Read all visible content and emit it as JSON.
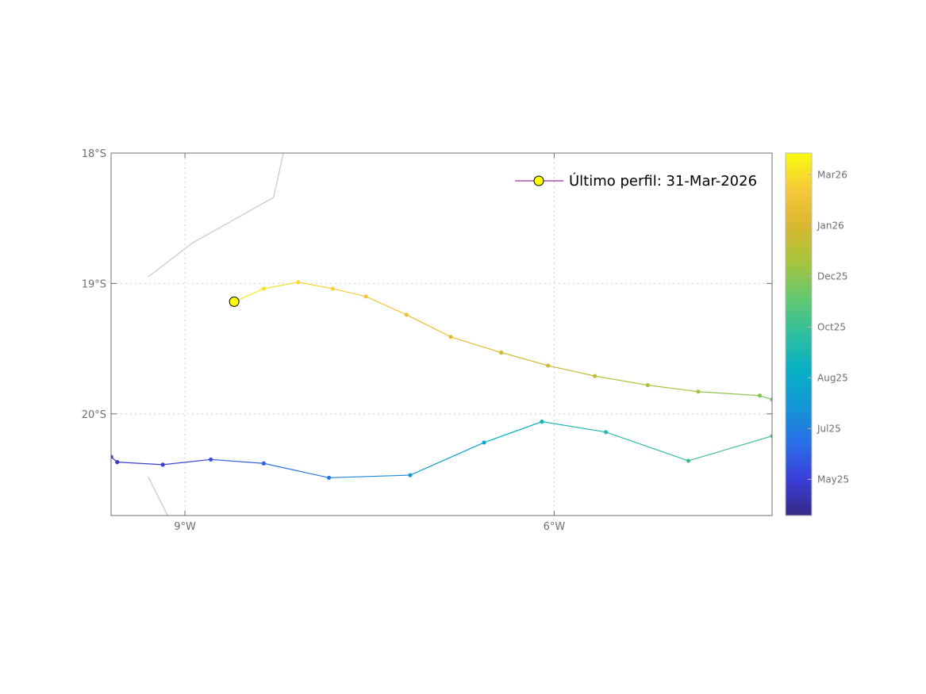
{
  "chart_data": {
    "type": "scatter",
    "description_type": "float-trajectory-map",
    "x_ticks": [
      {
        "value": -9,
        "label": "9°W"
      },
      {
        "value": -6,
        "label": "6°W"
      }
    ],
    "y_ticks": [
      {
        "value": -18,
        "label": "18°S"
      },
      {
        "value": -19,
        "label": "19°S"
      },
      {
        "value": -20,
        "label": "20°S"
      }
    ],
    "xlim": [
      -9.6,
      -4.23
    ],
    "ylim": [
      -20.78,
      -18.0
    ],
    "grid": true,
    "legend": {
      "position": "top-right",
      "label": "Último perfil: 31-Mar-2026",
      "marker_color": "#ffff00",
      "line_color": "#800080"
    },
    "colorbar": {
      "labels": [
        "Mar26",
        "Jan26",
        "Dec25",
        "Oct25",
        "Aug25",
        "Jul25",
        "May25"
      ],
      "positions": [
        0.94,
        0.8,
        0.66,
        0.52,
        0.38,
        0.24,
        0.1
      ],
      "colors": [
        "#352a87",
        "#3a3fd8",
        "#2a6fe8",
        "#1496d6",
        "#06b0c4",
        "#2fbfa0",
        "#63c86f",
        "#a8c43c",
        "#d8b72f",
        "#f7c93b",
        "#f9fb0e"
      ]
    },
    "trajectory": [
      {
        "lon": -9.6,
        "lat": -20.33,
        "t": 0.06
      },
      {
        "lon": -9.55,
        "lat": -20.37,
        "t": 0.08
      },
      {
        "lon": -9.18,
        "lat": -20.39,
        "t": 0.1
      },
      {
        "lon": -8.79,
        "lat": -20.35,
        "t": 0.14
      },
      {
        "lon": -8.36,
        "lat": -20.38,
        "t": 0.18
      },
      {
        "lon": -7.83,
        "lat": -20.49,
        "t": 0.23
      },
      {
        "lon": -7.17,
        "lat": -20.47,
        "t": 0.3
      },
      {
        "lon": -6.57,
        "lat": -20.22,
        "t": 0.37
      },
      {
        "lon": -6.1,
        "lat": -20.06,
        "t": 0.43
      },
      {
        "lon": -5.58,
        "lat": -20.14,
        "t": 0.48
      },
      {
        "lon": -4.91,
        "lat": -20.36,
        "t": 0.52
      },
      {
        "lon": -4.23,
        "lat": -20.17,
        "t": 0.57
      },
      {
        "lon": -4.23,
        "lat": -19.89,
        "t": 0.62
      },
      {
        "lon": -4.33,
        "lat": -19.86,
        "t": 0.64
      },
      {
        "lon": -4.83,
        "lat": -19.83,
        "t": 0.68
      },
      {
        "lon": -5.24,
        "lat": -19.78,
        "t": 0.71
      },
      {
        "lon": -5.67,
        "lat": -19.71,
        "t": 0.74
      },
      {
        "lon": -6.05,
        "lat": -19.63,
        "t": 0.77
      },
      {
        "lon": -6.43,
        "lat": -19.53,
        "t": 0.8
      },
      {
        "lon": -6.84,
        "lat": -19.41,
        "t": 0.83
      },
      {
        "lon": -7.2,
        "lat": -19.24,
        "t": 0.86
      },
      {
        "lon": -7.53,
        "lat": -19.1,
        "t": 0.89
      },
      {
        "lon": -7.8,
        "lat": -19.04,
        "t": 0.91
      },
      {
        "lon": -8.08,
        "lat": -18.99,
        "t": 0.93
      },
      {
        "lon": -8.36,
        "lat": -19.04,
        "t": 0.95
      },
      {
        "lon": -8.6,
        "lat": -19.14,
        "t": 0.97
      }
    ],
    "last_profile": {
      "lon": -8.6,
      "lat": -19.14
    },
    "contour_lines": [
      [
        {
          "lon": -8.2,
          "lat": -18.0
        },
        {
          "lon": -8.28,
          "lat": -18.34
        },
        {
          "lon": -8.94,
          "lat": -18.69
        },
        {
          "lon": -9.3,
          "lat": -18.95
        }
      ],
      [
        {
          "lon": -9.3,
          "lat": -20.48
        },
        {
          "lon": -9.14,
          "lat": -20.78
        }
      ]
    ]
  }
}
